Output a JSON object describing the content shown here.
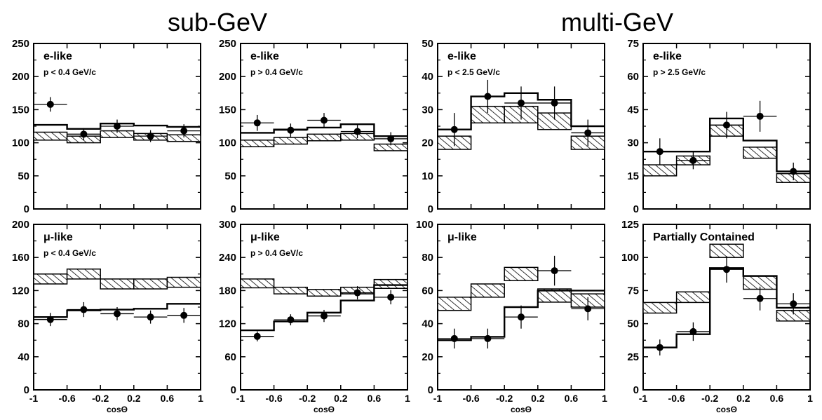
{
  "figure": {
    "group_titles": [
      "sub-GeV",
      "multi-GeV"
    ]
  },
  "colors": {
    "ink": "#000000",
    "background": "#ffffff"
  },
  "chart_data": [
    {
      "type": "line",
      "group": "sub-GeV",
      "label": "e-like",
      "sublabel": "p < 0.4 GeV/c",
      "xlabel": "",
      "xlim": [
        -1,
        1
      ],
      "ylim": [
        0,
        250
      ],
      "yticks": [
        0,
        50,
        100,
        150,
        200,
        250
      ],
      "xticks": [],
      "bins": [
        -1,
        -0.6,
        -0.2,
        0.2,
        0.6,
        1
      ],
      "prediction_band": [
        [
          104,
          116
        ],
        [
          100,
          110
        ],
        [
          108,
          118
        ],
        [
          104,
          114
        ],
        [
          102,
          112
        ]
      ],
      "oscillated_fit": [
        127,
        121,
        129,
        126,
        124
      ],
      "data": [
        {
          "x": -0.8,
          "y": 158,
          "yerr": 11
        },
        {
          "x": -0.4,
          "y": 113,
          "yerr": 9
        },
        {
          "x": 0.0,
          "y": 125,
          "yerr": 10
        },
        {
          "x": 0.4,
          "y": 110,
          "yerr": 9
        },
        {
          "x": 0.8,
          "y": 118,
          "yerr": 10
        }
      ]
    },
    {
      "type": "line",
      "group": "sub-GeV",
      "label": "e-like",
      "sublabel": "p > 0.4 GeV/c",
      "xlabel": "",
      "xlim": [
        -1,
        1
      ],
      "ylim": [
        0,
        250
      ],
      "yticks": [
        0,
        50,
        100,
        150,
        200,
        250
      ],
      "xticks": [],
      "bins": [
        -1,
        -0.6,
        -0.2,
        0.2,
        0.6,
        1
      ],
      "prediction_band": [
        [
          94,
          104
        ],
        [
          98,
          108
        ],
        [
          103,
          113
        ],
        [
          104,
          114
        ],
        [
          88,
          98
        ]
      ],
      "oscillated_fit": [
        115,
        120,
        123,
        128,
        110
      ],
      "data": [
        {
          "x": -0.8,
          "y": 130,
          "yerr": 12
        },
        {
          "x": -0.4,
          "y": 119,
          "yerr": 10
        },
        {
          "x": 0.0,
          "y": 134,
          "yerr": 11
        },
        {
          "x": 0.4,
          "y": 117,
          "yerr": 10
        },
        {
          "x": 0.8,
          "y": 106,
          "yerr": 10
        }
      ]
    },
    {
      "type": "line",
      "group": "multi-GeV",
      "label": "e-like",
      "sublabel": "p < 2.5 GeV/c",
      "xlabel": "",
      "xlim": [
        -1,
        1
      ],
      "ylim": [
        0,
        50
      ],
      "yticks": [
        0,
        10,
        20,
        30,
        40,
        50
      ],
      "xticks": [],
      "bins": [
        -1,
        -0.6,
        -0.2,
        0.2,
        0.6,
        1
      ],
      "prediction_band": [
        [
          18,
          22
        ],
        [
          26,
          31
        ],
        [
          26,
          31
        ],
        [
          24,
          29
        ],
        [
          18,
          22
        ]
      ],
      "oscillated_fit": [
        24,
        34,
        35,
        33,
        25
      ],
      "data": [
        {
          "x": -0.8,
          "y": 24,
          "yerr": 5
        },
        {
          "x": -0.4,
          "y": 34,
          "yerr": 5
        },
        {
          "x": 0.0,
          "y": 32,
          "yerr": 5
        },
        {
          "x": 0.4,
          "y": 32,
          "yerr": 5
        },
        {
          "x": 0.8,
          "y": 23,
          "yerr": 4
        }
      ]
    },
    {
      "type": "line",
      "group": "multi-GeV",
      "label": "e-like",
      "sublabel": "p > 2.5 GeV/c",
      "xlabel": "",
      "xlim": [
        -1,
        1
      ],
      "ylim": [
        0,
        75
      ],
      "yticks": [
        0,
        15,
        30,
        45,
        60,
        75
      ],
      "xticks": [],
      "bins": [
        -1,
        -0.6,
        -0.2,
        0.2,
        0.6,
        1
      ],
      "prediction_band": [
        [
          15,
          20
        ],
        [
          20,
          24
        ],
        [
          33,
          38
        ],
        [
          23,
          28
        ],
        [
          12,
          16
        ]
      ],
      "oscillated_fit": [
        26,
        26,
        41,
        31,
        17
      ],
      "data": [
        {
          "x": -0.8,
          "y": 26,
          "yerr": 6
        },
        {
          "x": -0.4,
          "y": 22,
          "yerr": 4
        },
        {
          "x": 0.0,
          "y": 38,
          "yerr": 6
        },
        {
          "x": 0.4,
          "y": 42,
          "yerr": 7
        },
        {
          "x": 0.8,
          "y": 17,
          "yerr": 4
        }
      ]
    },
    {
      "type": "line",
      "group": "sub-GeV",
      "label": "μ-like",
      "sublabel": "p < 0.4 GeV/c",
      "xlabel": "cosΘ",
      "xlim": [
        -1,
        1
      ],
      "ylim": [
        0,
        200
      ],
      "yticks": [
        0,
        40,
        80,
        120,
        160,
        200
      ],
      "xticks": [
        "-1",
        "-0.6",
        "-0.2",
        "0.2",
        "0.6",
        "1"
      ],
      "bins": [
        -1,
        -0.6,
        -0.2,
        0.2,
        0.6,
        1
      ],
      "prediction_band": [
        [
          128,
          140
        ],
        [
          134,
          146
        ],
        [
          122,
          134
        ],
        [
          122,
          134
        ],
        [
          124,
          136
        ]
      ],
      "oscillated_fit": [
        88,
        96,
        97,
        98,
        104
      ],
      "data": [
        {
          "x": -0.8,
          "y": 85,
          "yerr": 8
        },
        {
          "x": -0.4,
          "y": 97,
          "yerr": 9
        },
        {
          "x": 0.0,
          "y": 92,
          "yerr": 8
        },
        {
          "x": 0.4,
          "y": 88,
          "yerr": 8
        },
        {
          "x": 0.8,
          "y": 90,
          "yerr": 9
        }
      ]
    },
    {
      "type": "line",
      "group": "sub-GeV",
      "label": "μ-like",
      "sublabel": "p > 0.4 GeV/c",
      "xlabel": "cosΘ",
      "xlim": [
        -1,
        1
      ],
      "ylim": [
        0,
        300
      ],
      "yticks": [
        0,
        60,
        120,
        180,
        240,
        300
      ],
      "xticks": [
        "-1",
        "-0.6",
        "-0.2",
        "0.2",
        "0.6",
        "1"
      ],
      "bins": [
        -1,
        -0.6,
        -0.2,
        0.2,
        0.6,
        1
      ],
      "prediction_band": [
        [
          185,
          201
        ],
        [
          174,
          186
        ],
        [
          170,
          182
        ],
        [
          174,
          186
        ],
        [
          184,
          200
        ]
      ],
      "oscillated_fit": [
        108,
        124,
        140,
        162,
        190
      ],
      "data": [
        {
          "x": -0.8,
          "y": 97,
          "yerr": 9
        },
        {
          "x": -0.4,
          "y": 127,
          "yerr": 10
        },
        {
          "x": 0.0,
          "y": 134,
          "yerr": 11
        },
        {
          "x": 0.4,
          "y": 176,
          "yerr": 12
        },
        {
          "x": 0.8,
          "y": 168,
          "yerr": 13
        }
      ]
    },
    {
      "type": "line",
      "group": "multi-GeV",
      "label": "μ-like",
      "sublabel": "",
      "xlabel": "cosΘ",
      "xlim": [
        -1,
        1
      ],
      "ylim": [
        0,
        100
      ],
      "yticks": [
        0,
        20,
        40,
        60,
        80,
        100
      ],
      "xticks": [
        "-1",
        "-0.6",
        "-0.2",
        "0.2",
        "0.6",
        "1"
      ],
      "bins": [
        -1,
        -0.6,
        -0.2,
        0.2,
        0.6,
        1
      ],
      "prediction_band": [
        [
          48,
          56
        ],
        [
          56,
          64
        ],
        [
          66,
          74
        ],
        [
          53,
          61
        ],
        [
          50,
          58
        ]
      ],
      "oscillated_fit": [
        30,
        32,
        50,
        60,
        60
      ],
      "data": [
        {
          "x": -0.8,
          "y": 31,
          "yerr": 6
        },
        {
          "x": -0.4,
          "y": 31,
          "yerr": 6
        },
        {
          "x": 0.0,
          "y": 44,
          "yerr": 7
        },
        {
          "x": 0.4,
          "y": 72,
          "yerr": 9
        },
        {
          "x": 0.8,
          "y": 49,
          "yerr": 7
        }
      ]
    },
    {
      "type": "line",
      "group": "multi-GeV",
      "label": "Partially Contained",
      "sublabel": "",
      "xlabel": "cosΘ",
      "xlim": [
        -1,
        1
      ],
      "ylim": [
        0,
        125
      ],
      "yticks": [
        0,
        25,
        50,
        75,
        100,
        125
      ],
      "xticks": [
        "-1",
        "-0.6",
        "-0.2",
        "0.2",
        "0.6",
        "1"
      ],
      "bins": [
        -1,
        -0.6,
        -0.2,
        0.2,
        0.6,
        1
      ],
      "prediction_band": [
        [
          58,
          66
        ],
        [
          66,
          74
        ],
        [
          100,
          110
        ],
        [
          76,
          86
        ],
        [
          52,
          60
        ]
      ],
      "oscillated_fit": [
        32,
        42,
        92,
        86,
        62
      ],
      "data": [
        {
          "x": -0.8,
          "y": 32,
          "yerr": 6
        },
        {
          "x": -0.4,
          "y": 44,
          "yerr": 7
        },
        {
          "x": 0.0,
          "y": 91,
          "yerr": 10
        },
        {
          "x": 0.4,
          "y": 69,
          "yerr": 9
        },
        {
          "x": 0.8,
          "y": 65,
          "yerr": 8
        }
      ]
    }
  ]
}
